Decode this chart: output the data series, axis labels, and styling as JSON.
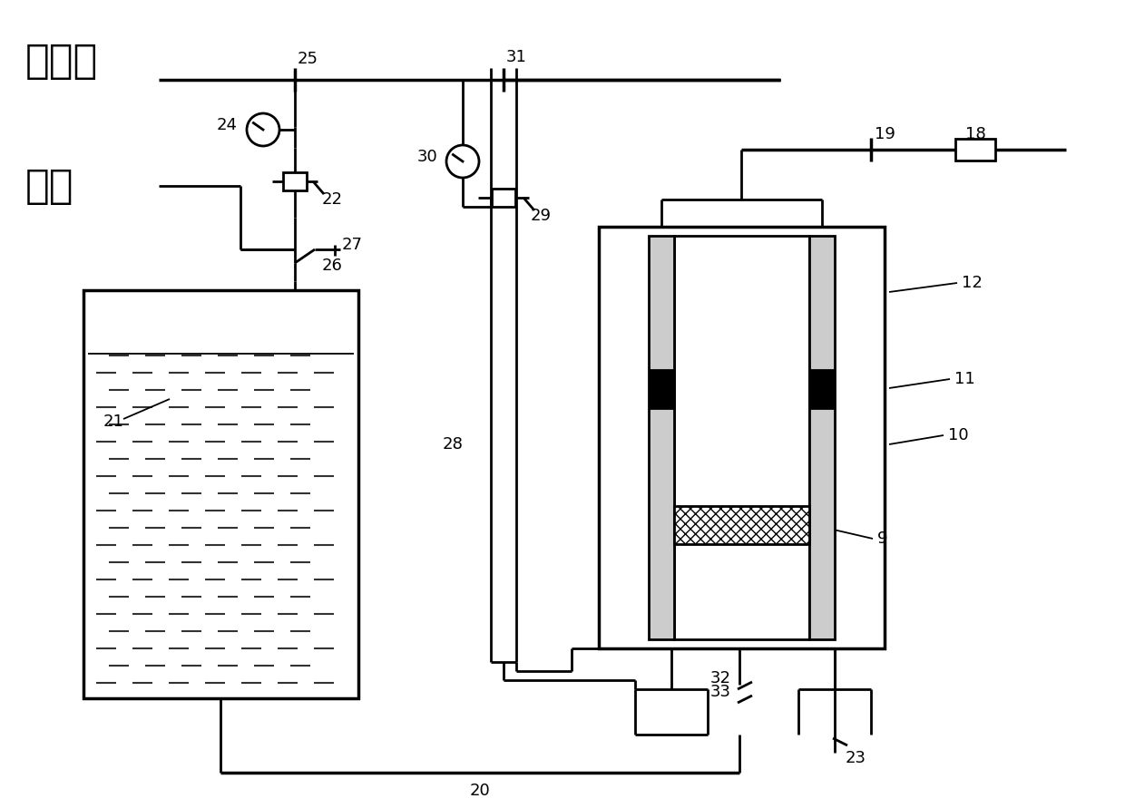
{
  "bg_color": "#ffffff",
  "lc": "#000000",
  "lw": 2.0,
  "lw_thick": 2.5,
  "lw_thin": 1.3,
  "fs_num": 13,
  "fs_cn": 32
}
